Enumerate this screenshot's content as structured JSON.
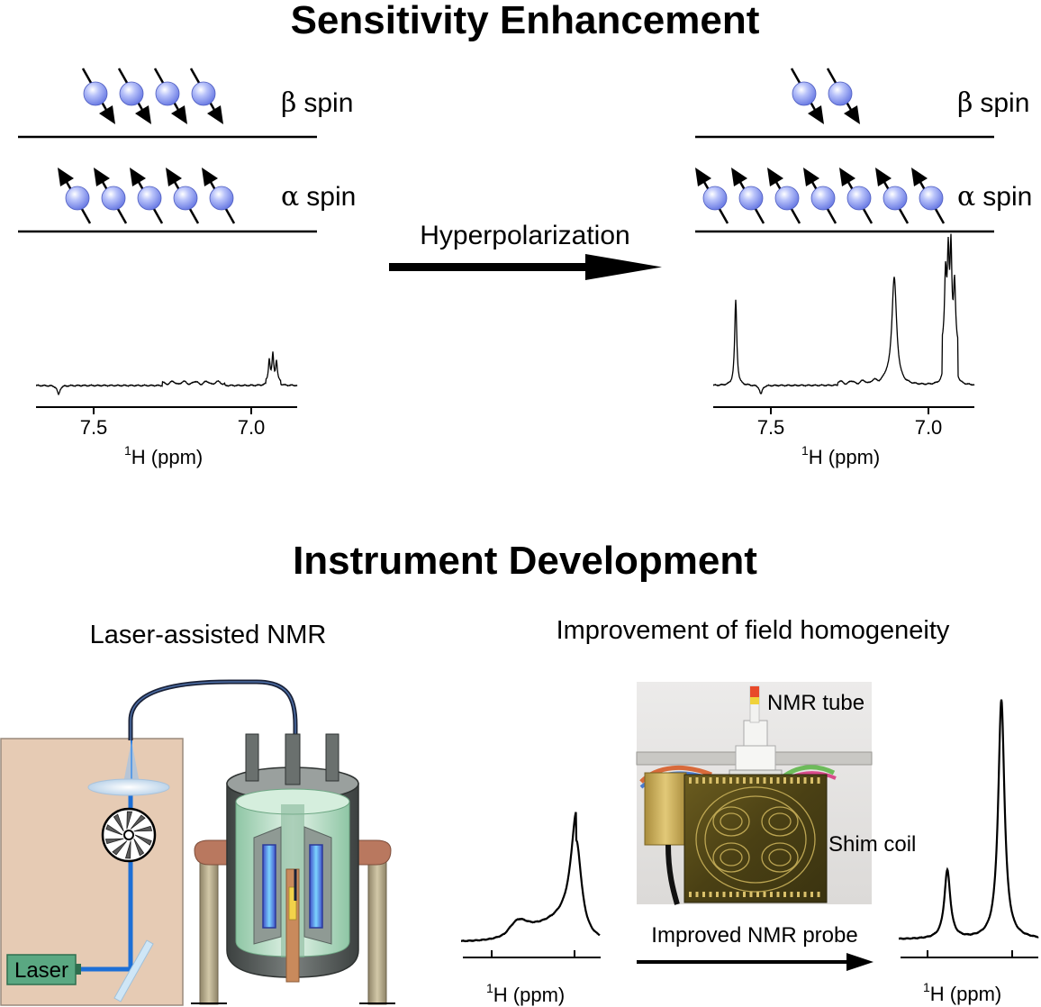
{
  "titles": {
    "sensitivity": "Sensitivity Enhancement",
    "instrument": "Instrument Development"
  },
  "panels": {
    "laser_nmr": "Laser-assisted NMR",
    "field_homogeneity": "Improvement of field homogeneity"
  },
  "spin_levels": {
    "beta_symbol": "β",
    "alpha_symbol": "α",
    "word": "spin",
    "before": {
      "beta_count": 4,
      "alpha_count": 5
    },
    "after": {
      "beta_count": 2,
      "alpha_count": 7
    }
  },
  "process": {
    "hyperpolarization": "Hyperpolarization",
    "improved_probe": "Improved NMR probe"
  },
  "spectrum_axis": {
    "nucleus_superscript": "1",
    "label": "H (ppm)",
    "ticks": [
      "7.5",
      "7.0"
    ]
  },
  "photo_labels": {
    "nmr_tube": "NMR tube",
    "shim_coil": "Shim coil"
  },
  "laser_label": "Laser",
  "colors": {
    "spin_ball": "#8f9ff0",
    "laser_box": "#e6cbb4",
    "laser_source": "#5aa882",
    "beam": "#1d6fd6",
    "magnet_shell": "#5d6360",
    "magnet_core": "#bfe0cc",
    "coil": "#5b6ed8",
    "coil_glow": "#4fb7ff",
    "board": "#554a18"
  }
}
